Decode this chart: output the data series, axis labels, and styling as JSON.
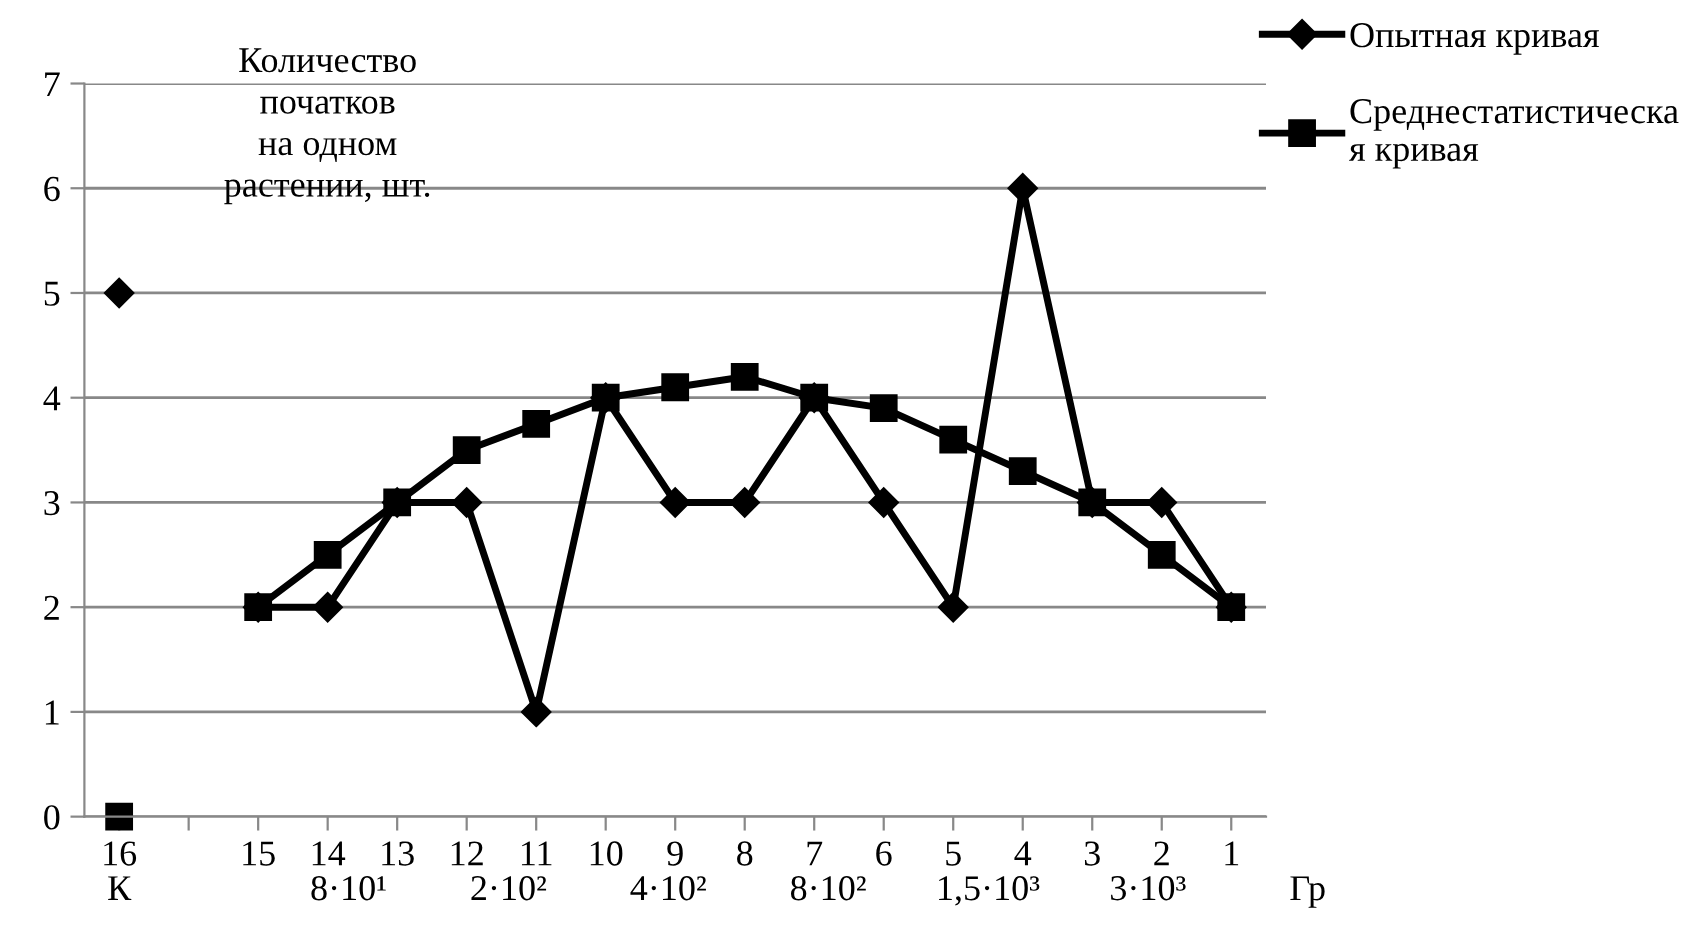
{
  "chart_data": {
    "type": "line",
    "ylabel": "Количество\nпочатков\nна одном\nрастении, шт.",
    "categories": [
      "16",
      null,
      "15",
      "14",
      "13",
      "12",
      "11",
      "10",
      "9",
      "8",
      "7",
      "6",
      "5",
      "4",
      "3",
      "2",
      "1"
    ],
    "series": [
      {
        "name": "Опытная кривая",
        "color": "#000000",
        "marker": "diamond",
        "values": [
          5,
          null,
          2,
          2,
          3,
          3,
          1,
          4,
          3,
          3,
          4,
          3,
          2,
          6,
          3,
          3,
          2
        ]
      },
      {
        "name": "Среднестатистическа\nя кривая",
        "color": "#000000",
        "marker": "square",
        "values": [
          0,
          null,
          2,
          2.5,
          3,
          3.5,
          3.75,
          4,
          4.1,
          4.2,
          4,
          3.9,
          3.6,
          3.3,
          3,
          2.5,
          2
        ]
      }
    ],
    "annotations": [
      "К",
      "8·10¹",
      "2·10²",
      "4·10²",
      "8·10²",
      "1,5·10³",
      "3·10³",
      "Гр"
    ],
    "ylim": [
      0,
      7
    ],
    "yticks": [
      0,
      1,
      2,
      3,
      4,
      5,
      6,
      7
    ],
    "grid": "y",
    "legend": "top right",
    "line_style": "solid"
  }
}
